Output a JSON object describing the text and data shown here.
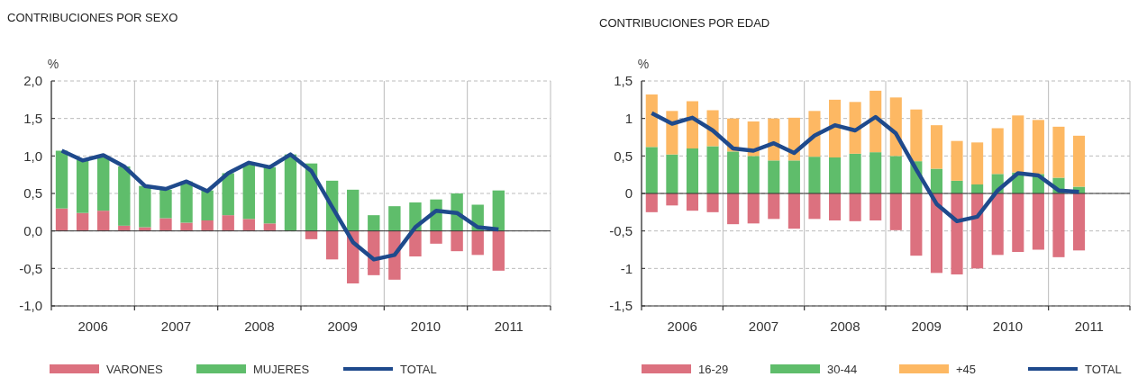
{
  "chart_data": [
    {
      "type": "bar",
      "title": "CONTRIBUCIONES POR SEXO",
      "ylabel": "%",
      "stacked": true,
      "grid": true,
      "legend": "bottom",
      "x": [
        2005.625,
        2005.875,
        2006.125,
        2006.375,
        2006.625,
        2006.875,
        2007.125,
        2007.375,
        2007.625,
        2007.875,
        2008.125,
        2008.375,
        2008.625,
        2008.875,
        2009.125,
        2009.375,
        2009.625,
        2009.875,
        2010.125,
        2010.375,
        2010.625,
        2010.875
      ],
      "xlim": [
        2005.5,
        2011.5
      ],
      "xticks": [
        {
          "value": 2005.5,
          "label": null
        },
        2006,
        {
          "value": 2006.5,
          "label": null
        },
        2007,
        {
          "value": 2007.5,
          "label": null
        },
        2008,
        {
          "value": 2008.5,
          "label": null
        },
        2009,
        {
          "value": 2009.5,
          "label": null
        },
        2010,
        {
          "value": 2010.5,
          "label": null
        },
        2011,
        {
          "value": 2011.5,
          "label": null
        }
      ],
      "ylim": [
        -1,
        2
      ],
      "yticks": [
        {
          "value": -1,
          "label": "-1,0"
        },
        {
          "value": -0.5,
          "label": "-0,5"
        },
        {
          "value": 0,
          "label": "0,0"
        },
        {
          "value": 0.5,
          "label": "0,5"
        },
        {
          "value": 1,
          "label": "1,0"
        },
        {
          "value": 1.5,
          "label": "1,5"
        },
        {
          "value": 2,
          "label": "2,0"
        }
      ],
      "series": [
        {
          "name": "VARONES",
          "type": "bar",
          "color": "#dc717f",
          "values": [
            0.3,
            0.24,
            0.27,
            0.07,
            0.05,
            0.17,
            0.11,
            0.14,
            0.21,
            0.16,
            0.1,
            0,
            -0.11,
            -0.38,
            -0.7,
            -0.59,
            -0.65,
            -0.34,
            -0.17,
            -0.27,
            -0.32,
            -0.53
          ]
        },
        {
          "name": "MUJERES",
          "type": "bar",
          "color": "#5fbd6b",
          "values": [
            0.77,
            0.71,
            0.71,
            0.79,
            0.55,
            0.38,
            0.55,
            0.4,
            0.56,
            0.73,
            0.75,
            1.02,
            0.9,
            0.67,
            0.55,
            0.21,
            0.33,
            0.38,
            0.42,
            0.5,
            0.35,
            0.54
          ]
        },
        {
          "name": "TOTAL",
          "type": "line",
          "color": "#1f4a8c",
          "line_style": "solid",
          "values": [
            1.07,
            0.94,
            1.01,
            0.86,
            0.6,
            0.56,
            0.66,
            0.53,
            0.77,
            0.91,
            0.85,
            1.02,
            0.8,
            0.32,
            -0.15,
            -0.38,
            -0.32,
            0.05,
            0.27,
            0.24,
            0.05,
            0.02
          ]
        }
      ]
    },
    {
      "type": "bar",
      "title": "CONTRIBUCIONES POR EDAD",
      "ylabel": "%",
      "stacked": true,
      "grid": true,
      "legend": "bottom",
      "x": [
        2005.625,
        2005.875,
        2006.125,
        2006.375,
        2006.625,
        2006.875,
        2007.125,
        2007.375,
        2007.625,
        2007.875,
        2008.125,
        2008.375,
        2008.625,
        2008.875,
        2009.125,
        2009.375,
        2009.625,
        2009.875,
        2010.125,
        2010.375,
        2010.625,
        2010.875
      ],
      "xlim": [
        2005.5,
        2011.5
      ],
      "xticks": [
        {
          "value": 2005.5,
          "label": null
        },
        2006,
        {
          "value": 2006.5,
          "label": null
        },
        2007,
        {
          "value": 2007.5,
          "label": null
        },
        2008,
        {
          "value": 2008.5,
          "label": null
        },
        2009,
        {
          "value": 2009.5,
          "label": null
        },
        2010,
        {
          "value": 2010.5,
          "label": null
        },
        2011,
        {
          "value": 2011.5,
          "label": null
        }
      ],
      "ylim": [
        -1.5,
        1.5
      ],
      "yticks": [
        {
          "value": -1.5,
          "label": "-1,5"
        },
        -1,
        {
          "value": -0.5,
          "label": "-0,5"
        },
        0,
        {
          "value": 0.5,
          "label": "0,5"
        },
        1,
        {
          "value": 1.5,
          "label": "1,5"
        }
      ],
      "series": [
        {
          "name": "16-29",
          "type": "bar",
          "color": "#dc717f",
          "values": [
            -0.25,
            -0.16,
            -0.23,
            -0.25,
            -0.41,
            -0.4,
            -0.34,
            -0.47,
            -0.34,
            -0.36,
            -0.37,
            -0.36,
            -0.49,
            -0.83,
            -1.06,
            -1.08,
            -1.0,
            -0.82,
            -0.78,
            -0.75,
            -0.85,
            -0.76
          ]
        },
        {
          "name": "30-44",
          "type": "bar",
          "color": "#5fbd6b",
          "values": [
            0.62,
            0.52,
            0.6,
            0.63,
            0.56,
            0.5,
            0.44,
            0.44,
            0.49,
            0.48,
            0.53,
            0.55,
            0.5,
            0.43,
            0.33,
            0.17,
            0.12,
            0.26,
            0.28,
            0.26,
            0.21,
            0.09
          ]
        },
        {
          "name": "+45",
          "type": "bar",
          "color": "#fdb863",
          "values": [
            0.7,
            0.58,
            0.63,
            0.48,
            0.44,
            0.46,
            0.56,
            0.57,
            0.61,
            0.77,
            0.69,
            0.82,
            0.78,
            0.69,
            0.58,
            0.53,
            0.56,
            0.61,
            0.76,
            0.72,
            0.68,
            0.68
          ]
        },
        {
          "name": "TOTAL",
          "type": "line",
          "color": "#1f4a8c",
          "line_style": "solid",
          "values": [
            1.07,
            0.93,
            1.01,
            0.84,
            0.6,
            0.57,
            0.67,
            0.54,
            0.77,
            0.91,
            0.84,
            1.02,
            0.8,
            0.32,
            -0.14,
            -0.37,
            -0.31,
            0.04,
            0.27,
            0.24,
            0.04,
            0.02
          ]
        }
      ]
    }
  ]
}
